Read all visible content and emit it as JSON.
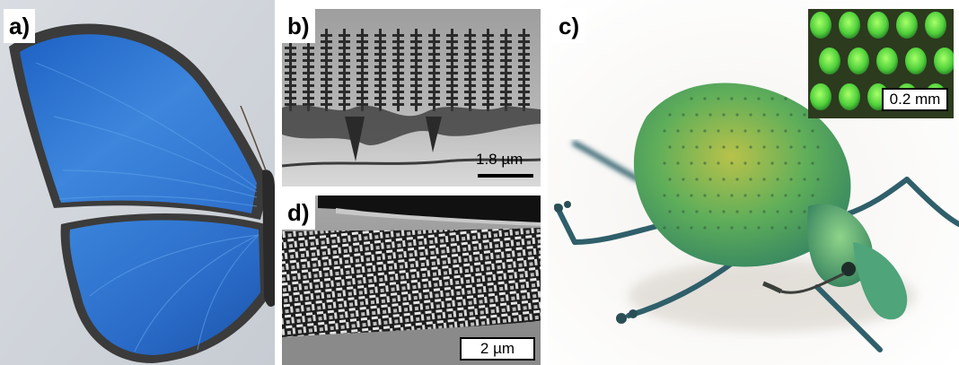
{
  "panels": {
    "a": {
      "label": "a)"
    },
    "b": {
      "label": "b)",
      "scale_bar": "1.8 µm"
    },
    "c": {
      "label": "c)",
      "inset_scale_bar": "0.2 mm"
    },
    "d": {
      "label": "d)",
      "scale_bar": "2 µm"
    }
  },
  "colors": {
    "butterfly_blue": "#2f74cf",
    "butterfly_edge": "#3a3a3a",
    "beetle_green": "#49a86a",
    "beetle_gold": "#a9b84a",
    "sem_gray": "#8c8c8c",
    "inset_dots": "#5fd93a"
  }
}
